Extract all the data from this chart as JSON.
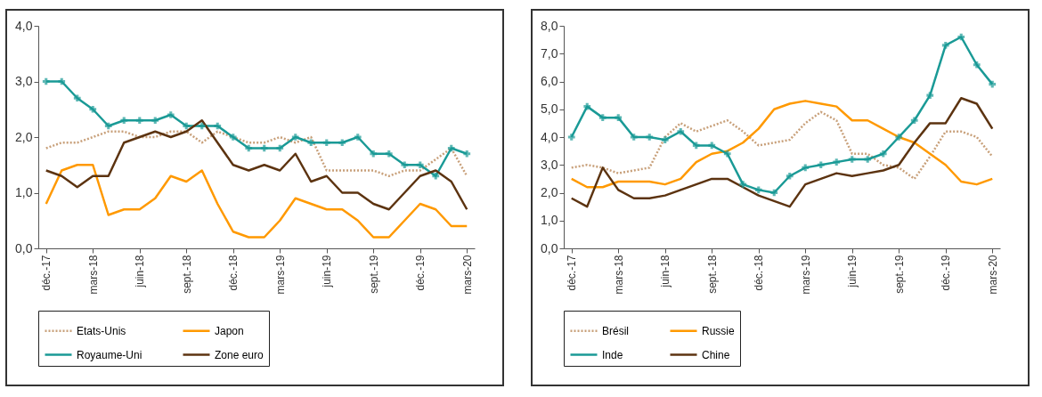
{
  "chart_data": [
    {
      "type": "line",
      "categories": [
        "déc.-17",
        null,
        null,
        "mars-18",
        null,
        null,
        "juin-18",
        null,
        null,
        "sept.-18",
        null,
        null,
        "déc.-18",
        null,
        null,
        "mars-19",
        null,
        null,
        "juin-19",
        null,
        null,
        "sept.-19",
        null,
        null,
        "déc.-19",
        null,
        null,
        "mars-20"
      ],
      "ylim": [
        0,
        4
      ],
      "yticks": [
        {
          "value": 0,
          "label": "0,0"
        },
        {
          "value": 1,
          "label": "1,0"
        },
        {
          "value": 2,
          "label": "2,0"
        },
        {
          "value": 3,
          "label": "3,0"
        },
        {
          "value": 4,
          "label": "4,0"
        }
      ],
      "grid": false,
      "legend": "bottom",
      "series": [
        {
          "name": "Etats-Unis",
          "color": "#c8a07a",
          "line_style": "dotted",
          "marker": "none",
          "values": [
            1.8,
            1.9,
            1.9,
            2.0,
            2.1,
            2.1,
            2.0,
            2.0,
            2.1,
            2.1,
            1.9,
            2.1,
            2.0,
            1.9,
            1.9,
            2.0,
            1.9,
            2.0,
            1.4,
            1.4,
            1.4,
            1.4,
            1.3,
            1.4,
            1.4,
            1.6,
            1.8,
            1.3
          ]
        },
        {
          "name": "Japon",
          "color": "#ff9900",
          "line_style": "solid",
          "marker": "none",
          "values": [
            0.8,
            1.4,
            1.5,
            1.5,
            0.6,
            0.7,
            0.7,
            0.9,
            1.3,
            1.2,
            1.4,
            0.8,
            0.3,
            0.2,
            0.2,
            0.5,
            0.9,
            0.8,
            0.7,
            0.7,
            0.5,
            0.2,
            0.2,
            0.5,
            0.8,
            0.7,
            0.4,
            0.4
          ]
        },
        {
          "name": "Royaume-Uni",
          "color": "#1a9a96",
          "line_style": "solid",
          "marker": "cross",
          "values": [
            3.0,
            3.0,
            2.7,
            2.5,
            2.2,
            2.3,
            2.3,
            2.3,
            2.4,
            2.2,
            2.2,
            2.2,
            2.0,
            1.8,
            1.8,
            1.8,
            2.0,
            1.9,
            1.9,
            1.9,
            2.0,
            1.7,
            1.7,
            1.5,
            1.5,
            1.3,
            1.8,
            1.7
          ]
        },
        {
          "name": "Zone euro",
          "color": "#5c3310",
          "line_style": "solid",
          "marker": "none",
          "values": [
            1.4,
            1.3,
            1.1,
            1.3,
            1.3,
            1.9,
            2.0,
            2.1,
            2.0,
            2.1,
            2.3,
            1.9,
            1.5,
            1.4,
            1.5,
            1.4,
            1.7,
            1.2,
            1.3,
            1.0,
            1.0,
            0.8,
            0.7,
            1.0,
            1.3,
            1.4,
            1.2,
            0.7
          ]
        }
      ]
    },
    {
      "type": "line",
      "categories": [
        "déc.-17",
        null,
        null,
        "mars-18",
        null,
        null,
        "juin-18",
        null,
        null,
        "sept.-18",
        null,
        null,
        "déc.-18",
        null,
        null,
        "mars-19",
        null,
        null,
        "juin-19",
        null,
        null,
        "sept.-19",
        null,
        null,
        "déc.-19",
        null,
        null,
        "mars-20"
      ],
      "ylim": [
        0,
        8
      ],
      "yticks": [
        {
          "value": 0,
          "label": "0,0"
        },
        {
          "value": 1,
          "label": "1,0"
        },
        {
          "value": 2,
          "label": "2,0"
        },
        {
          "value": 3,
          "label": "3,0"
        },
        {
          "value": 4,
          "label": "4,0"
        },
        {
          "value": 5,
          "label": "5,0"
        },
        {
          "value": 6,
          "label": "6,0"
        },
        {
          "value": 7,
          "label": "7,0"
        },
        {
          "value": 8,
          "label": "8,0"
        }
      ],
      "grid": false,
      "legend": "bottom",
      "series": [
        {
          "name": "Brésil",
          "color": "#c8a07a",
          "line_style": "dotted",
          "marker": "none",
          "values": [
            2.9,
            3.0,
            2.9,
            2.7,
            2.8,
            2.9,
            4.0,
            4.5,
            4.2,
            4.4,
            4.6,
            4.2,
            3.7,
            3.8,
            3.9,
            4.5,
            4.9,
            4.6,
            3.4,
            3.4,
            3.0,
            2.9,
            2.5,
            3.3,
            4.2,
            4.2,
            4.0,
            3.3
          ]
        },
        {
          "name": "Russie",
          "color": "#ff9900",
          "line_style": "solid",
          "marker": "none",
          "values": [
            2.5,
            2.2,
            2.2,
            2.4,
            2.4,
            2.4,
            2.3,
            2.5,
            3.1,
            3.4,
            3.5,
            3.8,
            4.3,
            5.0,
            5.2,
            5.3,
            5.2,
            5.1,
            4.6,
            4.6,
            4.3,
            4.0,
            3.8,
            3.4,
            3.0,
            2.4,
            2.3,
            2.5
          ]
        },
        {
          "name": "Inde",
          "color": "#1a9a96",
          "line_style": "solid",
          "marker": "cross",
          "values": [
            4.0,
            5.1,
            4.7,
            4.7,
            4.0,
            4.0,
            3.9,
            4.2,
            3.7,
            3.7,
            3.4,
            2.3,
            2.1,
            2.0,
            2.6,
            2.9,
            3.0,
            3.1,
            3.2,
            3.2,
            3.4,
            4.0,
            4.6,
            5.5,
            7.3,
            7.6,
            6.6,
            5.9
          ]
        },
        {
          "name": "Chine",
          "color": "#5c3310",
          "line_style": "solid",
          "marker": "none",
          "values": [
            1.8,
            1.5,
            2.9,
            2.1,
            1.8,
            1.8,
            1.9,
            2.1,
            2.3,
            2.5,
            2.5,
            2.2,
            1.9,
            1.7,
            1.5,
            2.3,
            2.5,
            2.7,
            2.6,
            2.7,
            2.8,
            3.0,
            3.8,
            4.5,
            4.5,
            5.4,
            5.2,
            4.3
          ]
        }
      ]
    }
  ]
}
